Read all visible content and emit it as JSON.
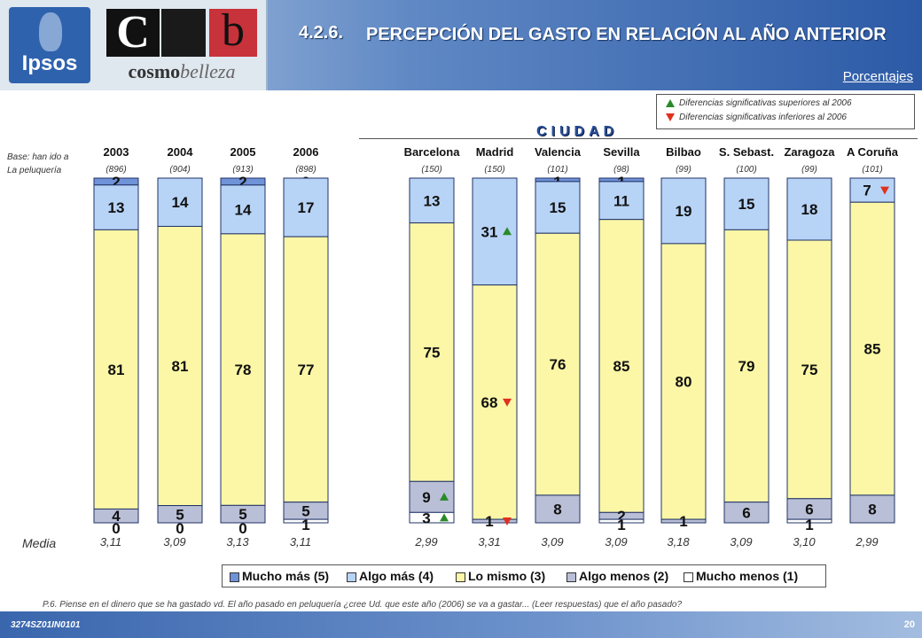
{
  "header": {
    "ipsos_logo": "Ipsos",
    "brand_logo_letters": [
      "C",
      "b"
    ],
    "brand_logo_text_a": "cosmo",
    "brand_logo_text_b": "belleza",
    "title_number": "4.2.6.",
    "title_text": "PERCEPCIÓN DEL GASTO EN RELACIÓN AL AÑO ANTERIOR",
    "subtitle_right": "Porcentajes"
  },
  "significance_legend": {
    "up_label": "Diferencias significativas superiores al 2006",
    "down_label": "Diferencias significativas inferiores al 2006",
    "up_color": "#2a8a2a",
    "down_color": "#e0311f"
  },
  "ciudad_label": "CIUDAD",
  "base_label_line1": "Base: han ido a",
  "base_label_line2": "La peluquería",
  "media_label": "Media",
  "question": "P.6.  Piense en el dinero que se ha gastado vd. El año pasado en peluquería ¿cree Ud. que este año (2006) se va a gastar... (Leer respuestas) que el año pasado?",
  "footer": {
    "code": "3274SZ01IN0101",
    "page": "20"
  },
  "chart_data": {
    "type": "bar",
    "stacked": true,
    "unit": "%",
    "categories": [
      "2003",
      "2004",
      "2005",
      "2006",
      "Barcelona",
      "Madrid",
      "Valencia",
      "Sevilla",
      "Bilbao",
      "S. Sebast.",
      "Zaragoza",
      "A Coruña"
    ],
    "bases": [
      "(896)",
      "(904)",
      "(913)",
      "(898)",
      "(150)",
      "(150)",
      "(101)",
      "(98)",
      "(99)",
      "(100)",
      "(99)",
      "(101)"
    ],
    "media": [
      "3,11",
      "3,09",
      "3,13",
      "3,11",
      "2,99",
      "3,31",
      "3,09",
      "3,09",
      "3,18",
      "3,09",
      "3,10",
      "2,99"
    ],
    "series": [
      {
        "name": "Mucho más (5)",
        "color": "#6f92d8",
        "values": [
          2,
          null,
          2,
          0,
          null,
          null,
          1,
          1,
          null,
          null,
          null,
          null
        ]
      },
      {
        "name": "Algo más (4)",
        "color": "#b7d4f7",
        "values": [
          13,
          14,
          14,
          17,
          13,
          31,
          15,
          11,
          19,
          15,
          18,
          7
        ]
      },
      {
        "name": "Lo mismo (3)",
        "color": "#fbf7a6",
        "values": [
          81,
          81,
          78,
          77,
          75,
          68,
          76,
          85,
          80,
          79,
          75,
          85
        ]
      },
      {
        "name": "Algo menos (2)",
        "color": "#b9bfd6",
        "values": [
          4,
          5,
          5,
          5,
          9,
          1,
          8,
          2,
          1,
          6,
          6,
          8
        ]
      },
      {
        "name": "Mucho menos (1)",
        "color": "#ffffff",
        "values": [
          0,
          0,
          0,
          1,
          3,
          null,
          null,
          1,
          null,
          null,
          1,
          null
        ]
      }
    ],
    "significance_marks": [
      {
        "category": "Barcelona",
        "series": "Algo menos (2)",
        "direction": "up"
      },
      {
        "category": "Barcelona",
        "series": "Mucho menos (1)",
        "direction": "up"
      },
      {
        "category": "Madrid",
        "series": "Algo más (4)",
        "direction": "up"
      },
      {
        "category": "Madrid",
        "series": "Lo mismo (3)",
        "direction": "down"
      },
      {
        "category": "Madrid",
        "series": "Algo menos (2)",
        "direction": "down"
      },
      {
        "category": "A Coruña",
        "series": "Algo más (4)",
        "direction": "down"
      }
    ],
    "legend_position": "bottom"
  }
}
